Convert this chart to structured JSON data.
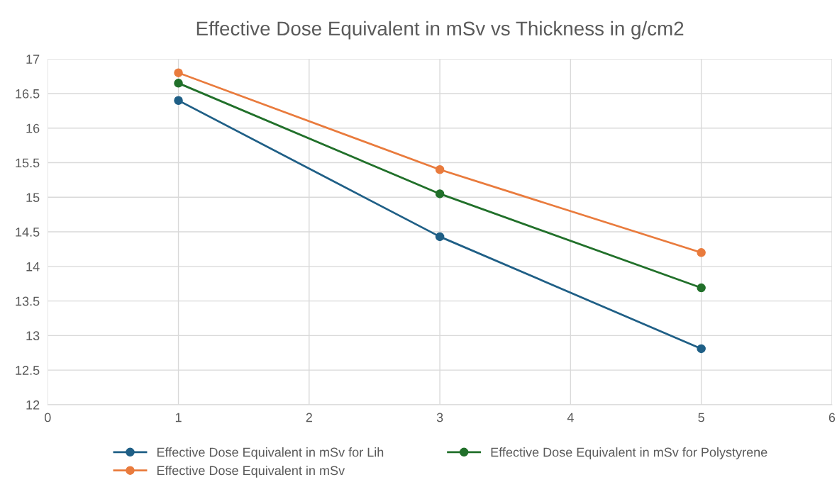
{
  "chart_data": {
    "type": "line",
    "title": "Effective Dose Equivalent in mSv vs Thickness in g/cm2",
    "x": [
      1,
      3,
      5
    ],
    "series": [
      {
        "name": "Effective Dose Equivalent in mSv for Lih",
        "color": "#1f5f86",
        "values": [
          16.4,
          14.43,
          12.81
        ]
      },
      {
        "name": "Effective Dose Equivalent in mSv",
        "color": "#e97b3d",
        "values": [
          16.8,
          15.4,
          14.2
        ]
      },
      {
        "name": "Effective Dose Equivalent in mSv for Polystyrene",
        "color": "#21702a",
        "values": [
          16.65,
          15.05,
          13.69
        ]
      }
    ],
    "xlim": [
      0,
      6
    ],
    "xticks": [
      0,
      1,
      2,
      3,
      4,
      5,
      6
    ],
    "ylim": [
      12,
      17
    ],
    "yticks": [
      12,
      12.5,
      13,
      13.5,
      14,
      14.5,
      15,
      15.5,
      16,
      16.5,
      17
    ],
    "grid": true,
    "legend": "bottom",
    "marker": "circle",
    "line_style": "solid"
  }
}
